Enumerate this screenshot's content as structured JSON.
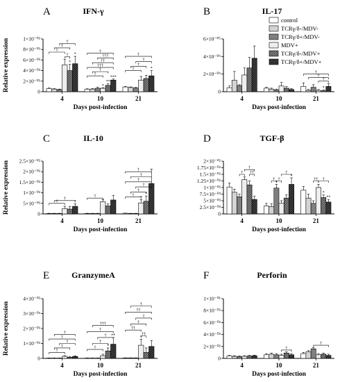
{
  "legend": [
    "control",
    "TCRγ/δ-/MDV-",
    "TCRγ/δ+/MDV-",
    "MDV+",
    "TCRγ/δ-/MDV+",
    "TCRγ/δ+/MDV+"
  ],
  "chart_data": [
    {
      "letter": "A",
      "title": "IFN-γ",
      "type": "bar",
      "ylabel": "Relative expression",
      "xlabel": "Days post-infection",
      "categories": [
        "4",
        "10",
        "21"
      ],
      "yticks": [
        "0",
        "2×10⁻⁰³",
        "4×10⁻⁰³",
        "6×10⁻⁰³",
        "8×10⁻⁰³",
        "1×10⁻⁰²"
      ],
      "ylim": [
        0,
        0.01
      ],
      "series": [
        {
          "name": "control",
          "values": [
            0.0006,
            0.00045,
            0.0009
          ]
        },
        {
          "name": "TCRγ/δ-/MDV-",
          "values": [
            0.0005,
            0.0005,
            0.0008
          ]
        },
        {
          "name": "TCRγ/δ+/MDV-",
          "values": [
            0.0004,
            0.00065,
            0.0007
          ]
        },
        {
          "name": "MDV+",
          "values": [
            0.0051,
            0.00065,
            0.0022
          ]
        },
        {
          "name": "TCRγ/δ-/MDV+",
          "values": [
            0.004,
            0.0012,
            0.0025
          ]
        },
        {
          "name": "TCRγ/δ+/MDV+",
          "values": [
            0.0053,
            0.0022,
            0.003
          ]
        }
      ],
      "errors": [
        [
          0.0001,
          0.0001,
          0.0001
        ],
        [
          0.0001,
          0.0001,
          0.0001
        ],
        [
          0.0001,
          0.0002,
          0.0001
        ],
        [
          0.001,
          0.0001,
          0.0007
        ],
        [
          0.0012,
          0.0003,
          0.0006
        ],
        [
          0.0014,
          0.0002,
          0.001
        ]
      ],
      "brackets": [
        {
          "t": "†",
          "g": 0,
          "a": 3,
          "b": 4,
          "y": 0.0066
        },
        {
          "t": "†",
          "g": 0,
          "a": 0,
          "b": 3,
          "y": 0.0075
        },
        {
          "t": "†",
          "g": 0,
          "a": 1,
          "b": 4,
          "y": 0.0083
        },
        {
          "t": "†",
          "g": 0,
          "a": 2,
          "b": 5,
          "y": 0.0091
        },
        {
          "t": "†",
          "g": 1,
          "a": 0,
          "b": 3,
          "y": 0.003
        },
        {
          "t": "†",
          "g": 1,
          "a": 1,
          "b": 4,
          "y": 0.0038
        },
        {
          "t": "†††",
          "g": 1,
          "a": 0,
          "b": 5,
          "y": 0.0046
        },
        {
          "t": "††",
          "g": 1,
          "a": 1,
          "b": 5,
          "y": 0.0055
        },
        {
          "t": "†††",
          "g": 1,
          "a": 2,
          "b": 5,
          "y": 0.0064
        },
        {
          "t": "†",
          "g": 1,
          "a": 0,
          "b": 5,
          "y": 0.0073
        },
        {
          "t": "†",
          "g": 2,
          "a": 0,
          "b": 3,
          "y": 0.004
        },
        {
          "t": "†",
          "g": 2,
          "a": 1,
          "b": 4,
          "y": 0.0048
        },
        {
          "t": "†",
          "g": 2,
          "a": 2,
          "b": 5,
          "y": 0.0057
        },
        {
          "t": "†",
          "g": 2,
          "a": 0,
          "b": 5,
          "y": 0.0067
        }
      ],
      "stars": [
        {
          "g": 1,
          "i": 3,
          "t": "*"
        },
        {
          "g": 1,
          "i": 4,
          "t": "**"
        },
        {
          "g": 1,
          "i": 5,
          "t": "***"
        },
        {
          "g": 2,
          "i": 5,
          "t": "*"
        },
        {
          "g": 0,
          "i": 4,
          "t": "*"
        },
        {
          "g": 0,
          "i": 5,
          "t": "*"
        }
      ]
    },
    {
      "letter": "B",
      "title": "IL-17",
      "type": "bar",
      "ylabel": "",
      "xlabel": "Days post-infection",
      "categories": [
        "4",
        "10",
        "21"
      ],
      "yticks": [
        "0",
        "2×10⁻⁰⁵",
        "4×10⁻⁰⁵",
        "6×10⁻⁰⁵"
      ],
      "ylim": [
        0,
        6e-05
      ],
      "series": [
        {
          "name": "control",
          "values": [
            4.5e-06,
            4e-06,
            6e-06
          ]
        },
        {
          "name": "TCRγ/δ-/MDV-",
          "values": [
            1.3e-05,
            3e-06,
            1.5e-06
          ]
        },
        {
          "name": "TCRγ/δ+/MDV-",
          "values": [
            7e-06,
            2e-06,
            5e-06
          ]
        },
        {
          "name": "MDV+",
          "values": [
            1.9e-05,
            6.5e-06,
            1.5e-06
          ]
        },
        {
          "name": "TCRγ/δ-/MDV+",
          "values": [
            2.7e-05,
            4e-06,
            1e-06
          ]
        },
        {
          "name": "TCRγ/δ+/MDV+",
          "values": [
            3.8e-05,
            2.5e-06,
            6e-06
          ]
        }
      ],
      "errors": [
        [
          2e-06,
          1e-06,
          4e-06
        ],
        [
          1e-05,
          1e-06,
          1e-06
        ],
        [
          1e-06,
          1e-06,
          3e-06
        ],
        [
          8e-06,
          4e-06,
          1e-06
        ],
        [
          1.2e-05,
          2e-06,
          1e-06
        ],
        [
          1.4e-05,
          1e-06,
          3e-06
        ]
      ],
      "brackets": [
        {
          "t": "†",
          "g": 2,
          "a": 3,
          "b": 5,
          "y": 1.2e-05
        },
        {
          "t": "†",
          "g": 2,
          "a": 1,
          "b": 5,
          "y": 1.6e-05
        },
        {
          "t": "†",
          "g": 2,
          "a": 0,
          "b": 5,
          "y": 2e-05
        }
      ],
      "stars": [
        {
          "g": 2,
          "i": 4,
          "t": "*"
        }
      ]
    },
    {
      "letter": "C",
      "title": "IL-10",
      "type": "bar",
      "ylabel": "Relative expression",
      "xlabel": "Days post-infection",
      "categories": [
        "4",
        "10",
        "21"
      ],
      "yticks": [
        "0",
        "5×10⁻⁰³",
        "1×10⁻⁰²",
        "1.5×10⁻⁰²",
        "2×10⁻⁰²",
        "2.5×10⁻⁰²"
      ],
      "ylim": [
        0,
        0.025
      ],
      "series": [
        {
          "name": "control",
          "values": [
            0.0002,
            0.0002,
            0.0003
          ]
        },
        {
          "name": "TCRγ/δ-/MDV-",
          "values": [
            0.0002,
            0.0002,
            0.0002
          ]
        },
        {
          "name": "TCRγ/δ+/MDV-",
          "values": [
            0.0002,
            0.0002,
            0.0002
          ]
        },
        {
          "name": "MDV+",
          "values": [
            0.0025,
            0.0058,
            0.0052
          ]
        },
        {
          "name": "TCRγ/δ-/MDV+",
          "values": [
            0.0023,
            0.0038,
            0.006
          ]
        },
        {
          "name": "TCRγ/δ+/MDV+",
          "values": [
            0.0036,
            0.0066,
            0.0144
          ]
        }
      ],
      "errors": [
        [
          0.0001,
          0.0001,
          0.0001
        ],
        [
          0.0001,
          0.0001,
          0.0001
        ],
        [
          0.0001,
          0.0001,
          0.0001
        ],
        [
          0.0011,
          0.001,
          0.0016
        ],
        [
          0.0012,
          0.001,
          0.0025
        ],
        [
          0.0012,
          0.0022,
          0.0068
        ]
      ],
      "brackets": [
        {
          "t": "†",
          "g": 0,
          "a": 0,
          "b": 3,
          "y": 0.005
        },
        {
          "t": "†",
          "g": 0,
          "a": 1,
          "b": 5,
          "y": 0.0063
        },
        {
          "t": "†",
          "g": 1,
          "a": 0,
          "b": 3,
          "y": 0.0075
        },
        {
          "t": "†",
          "g": 2,
          "a": 0,
          "b": 3,
          "y": 0.008
        },
        {
          "t": "†",
          "g": 2,
          "a": 1,
          "b": 4,
          "y": 0.0103
        },
        {
          "t": "†",
          "g": 2,
          "a": 2,
          "b": 5,
          "y": 0.0128
        },
        {
          "t": "†",
          "g": 2,
          "a": 0,
          "b": 5,
          "y": 0.0152
        },
        {
          "t": "†",
          "g": 2,
          "a": 1,
          "b": 5,
          "y": 0.0176
        },
        {
          "t": "†",
          "g": 2,
          "a": 0,
          "b": 5,
          "y": 0.02
        }
      ],
      "stars": [
        {
          "g": 0,
          "i": 5,
          "t": "*"
        },
        {
          "g": 2,
          "i": 3,
          "t": "*"
        },
        {
          "g": 2,
          "i": 4,
          "t": "*"
        }
      ]
    },
    {
      "letter": "D",
      "title": "TGF-β",
      "type": "bar",
      "ylabel": "",
      "xlabel": "Days post-infection",
      "categories": [
        "4",
        "10",
        "21"
      ],
      "yticks": [
        "0",
        "2.5×10⁻⁰³",
        "5×10⁻⁰³",
        "7.5×10⁻⁰³",
        "1×10⁻⁰²",
        "1.25×10⁻⁰²",
        "1.5×10⁻⁰²",
        "1.75×10⁻⁰²",
        "2×10⁻⁰²"
      ],
      "ylim": [
        0,
        0.02
      ],
      "series": [
        {
          "name": "control",
          "values": [
            0.0102,
            0.003,
            0.009
          ]
        },
        {
          "name": "TCRγ/δ-/MDV-",
          "values": [
            0.0082,
            0.0028,
            0.006
          ]
        },
        {
          "name": "TCRγ/δ+/MDV-",
          "values": [
            0.0065,
            0.0098,
            0.004
          ]
        },
        {
          "name": "MDV+",
          "values": [
            0.013,
            0.004,
            0.01
          ]
        },
        {
          "name": "TCRγ/δ-/MDV+",
          "values": [
            0.011,
            0.006,
            0.0062
          ]
        },
        {
          "name": "TCRγ/δ+/MDV+",
          "values": [
            0.0055,
            0.0112,
            0.0045
          ]
        }
      ],
      "errors": [
        [
          0.0015,
          0.001,
          0.0014
        ],
        [
          0.0012,
          0.001,
          0.0015
        ],
        [
          0.001,
          0.0014,
          0.001
        ],
        [
          0.001,
          0.001,
          0.0012
        ],
        [
          0.0015,
          0.0012,
          0.001
        ],
        [
          0.0012,
          0.0025,
          0.001
        ]
      ],
      "brackets": [
        {
          "t": "†",
          "g": 0,
          "a": 2,
          "b": 3,
          "y": 0.015
        },
        {
          "t": "††",
          "g": 0,
          "a": 4,
          "b": 5,
          "y": 0.015
        },
        {
          "t": "†",
          "g": 0,
          "a": 3,
          "b": 5,
          "y": 0.0168
        },
        {
          "t": "†",
          "g": 1,
          "a": 1,
          "b": 2,
          "y": 0.0125
        },
        {
          "t": "†",
          "g": 1,
          "a": 2,
          "b": 3,
          "y": 0.0125
        },
        {
          "t": "†",
          "g": 1,
          "a": 3,
          "b": 5,
          "y": 0.015
        },
        {
          "t": "††",
          "g": 2,
          "a": 2,
          "b": 3,
          "y": 0.0125
        },
        {
          "t": "†",
          "g": 2,
          "a": 3,
          "b": 5,
          "y": 0.0125
        }
      ],
      "stars": [
        {
          "g": 1,
          "i": 2,
          "t": "*"
        },
        {
          "g": 1,
          "i": 5,
          "t": "*"
        },
        {
          "g": 2,
          "i": 4,
          "t": "*"
        },
        {
          "g": 2,
          "i": 5,
          "t": "**"
        }
      ]
    },
    {
      "letter": "E",
      "title": "GranzymeA",
      "type": "bar",
      "ylabel": "Relative expression",
      "xlabel": "Days post-infection",
      "categories": [
        "4",
        "10",
        "21"
      ],
      "yticks": [
        "0",
        "1×10⁻⁰³",
        "2×10⁻⁰³",
        "3×10⁻⁰³",
        "4×10⁻⁰³"
      ],
      "ylim": [
        0,
        0.004
      ],
      "series": [
        {
          "name": "control",
          "values": [
            2e-05,
            2e-05,
            3e-05
          ]
        },
        {
          "name": "TCRγ/δ-/MDV-",
          "values": [
            2e-05,
            2e-05,
            3e-05
          ]
        },
        {
          "name": "TCRγ/δ+/MDV-",
          "values": [
            2e-05,
            2e-05,
            3e-05
          ]
        },
        {
          "name": "MDV+",
          "values": [
            0.00014,
            0.00018,
            0.00088
          ]
        },
        {
          "name": "TCRγ/δ-/MDV+",
          "values": [
            8e-05,
            0.0005,
            0.0004
          ]
        },
        {
          "name": "TCRγ/δ+/MDV+",
          "values": [
            0.00013,
            0.00095,
            0.0008
          ]
        }
      ],
      "errors": [
        [
          1e-05,
          1e-05,
          1e-05
        ],
        [
          1e-05,
          1e-05,
          1e-05
        ],
        [
          1e-05,
          1e-05,
          1e-05
        ],
        [
          4e-05,
          0.0001,
          0.0004
        ],
        [
          3e-05,
          0.0002,
          0.0003
        ],
        [
          4e-05,
          0.00045,
          0.0004
        ]
      ],
      "brackets": [
        {
          "t": "†",
          "g": 0,
          "a": 0,
          "b": 3,
          "y": 0.0004
        },
        {
          "t": "†",
          "g": 0,
          "a": 1,
          "b": 4,
          "y": 0.0007
        },
        {
          "t": "†",
          "g": 0,
          "a": 2,
          "b": 5,
          "y": 0.001
        },
        {
          "t": "†",
          "g": 0,
          "a": 0,
          "b": 5,
          "y": 0.0013
        },
        {
          "t": "†",
          "g": 0,
          "a": 1,
          "b": 5,
          "y": 0.0016
        },
        {
          "t": "†",
          "g": 1,
          "a": 0,
          "b": 3,
          "y": 0.0006
        },
        {
          "t": "†",
          "g": 1,
          "a": 1,
          "b": 4,
          "y": 0.001
        },
        {
          "t": "†",
          "g": 1,
          "a": 2,
          "b": 5,
          "y": 0.0014
        },
        {
          "t": "†",
          "g": 1,
          "a": 0,
          "b": 5,
          "y": 0.0018
        },
        {
          "t": "†††",
          "g": 1,
          "a": 1,
          "b": 5,
          "y": 0.0022
        },
        {
          "t": "††",
          "g": 2,
          "a": 3,
          "b": 4,
          "y": 0.0015
        },
        {
          "t": "††",
          "g": 2,
          "a": 0,
          "b": 3,
          "y": 0.0019
        },
        {
          "t": "†",
          "g": 2,
          "a": 1,
          "b": 4,
          "y": 0.0023
        },
        {
          "t": "†",
          "g": 2,
          "a": 2,
          "b": 5,
          "y": 0.0027
        },
        {
          "t": "††",
          "g": 2,
          "a": 0,
          "b": 5,
          "y": 0.0031
        },
        {
          "t": "†",
          "g": 2,
          "a": 1,
          "b": 5,
          "y": 0.0035
        }
      ],
      "stars": [
        {
          "g": 1,
          "i": 4,
          "t": "*"
        },
        {
          "g": 1,
          "i": 5,
          "t": "**"
        },
        {
          "g": 2,
          "i": 3,
          "t": "*"
        }
      ]
    },
    {
      "letter": "F",
      "title": "Perforin",
      "type": "bar",
      "ylabel": "",
      "xlabel": "Days post-infection",
      "categories": [
        "4",
        "10",
        "21"
      ],
      "yticks": [
        "0",
        "2×10⁻⁰²",
        "4×10⁻⁰²",
        "6×10⁻⁰²",
        "8×10⁻⁰²",
        "1×10⁻⁰¹"
      ],
      "ylim": [
        0,
        0.1
      ],
      "series": [
        {
          "name": "control",
          "values": [
            0.004,
            0.006,
            0.008
          ]
        },
        {
          "name": "TCRγ/δ-/MDV-",
          "values": [
            0.0035,
            0.007,
            0.011
          ]
        },
        {
          "name": "TCRγ/δ+/MDV-",
          "values": [
            0.003,
            0.006,
            0.016
          ]
        },
        {
          "name": "MDV+",
          "values": [
            0.0035,
            0.005,
            0.006
          ]
        },
        {
          "name": "TCRγ/δ-/MDV+",
          "values": [
            0.004,
            0.009,
            0.007
          ]
        },
        {
          "name": "TCRγ/δ+/MDV+",
          "values": [
            0.0045,
            0.006,
            0.005
          ]
        }
      ],
      "errors": [
        [
          0.001,
          0.002,
          0.002
        ],
        [
          0.001,
          0.002,
          0.002
        ],
        [
          0.001,
          0.002,
          0.002
        ],
        [
          0.001,
          0.002,
          0.002
        ],
        [
          0.001,
          0.002,
          0.002
        ],
        [
          0.001,
          0.002,
          0.002
        ]
      ],
      "brackets": [
        {
          "t": "†",
          "g": 1,
          "a": 3,
          "b": 5,
          "y": 0.014
        },
        {
          "t": "†",
          "g": 2,
          "a": 2,
          "b": 5,
          "y": 0.022
        }
      ],
      "stars": []
    }
  ]
}
